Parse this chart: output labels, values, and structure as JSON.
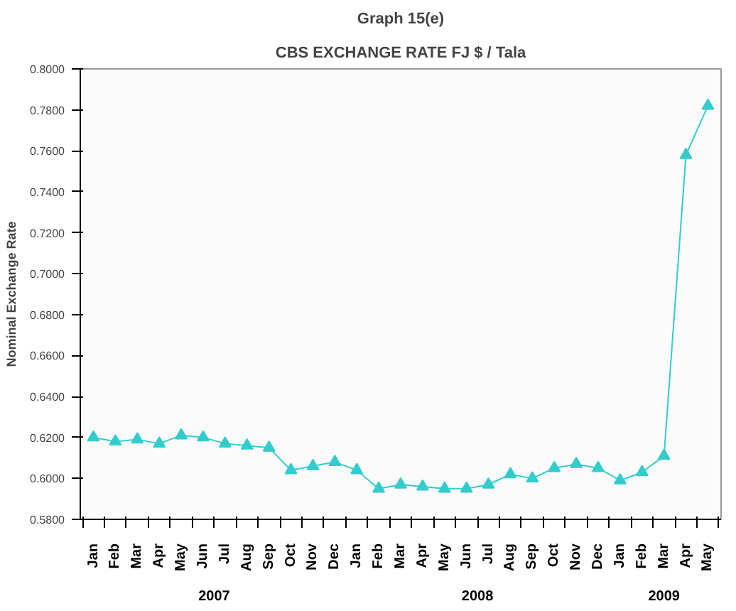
{
  "chart_data": {
    "type": "line",
    "title": "Graph 15(e)",
    "subtitle": "CBS EXCHANGE RATE FJ $ / Tala",
    "ylabel": "Nominal Exchange Rate",
    "categories": [
      [
        "2007",
        "Jan"
      ],
      [
        null,
        "Feb"
      ],
      [
        null,
        "Mar"
      ],
      [
        null,
        "Apr"
      ],
      [
        null,
        "May"
      ],
      [
        null,
        "Jun"
      ],
      [
        null,
        "Jul"
      ],
      [
        null,
        "Aug"
      ],
      [
        null,
        "Sep"
      ],
      [
        null,
        "Oct"
      ],
      [
        null,
        "Nov"
      ],
      [
        null,
        "Dec"
      ],
      [
        "2008",
        "Jan"
      ],
      [
        null,
        "Feb"
      ],
      [
        null,
        "Mar"
      ],
      [
        null,
        "Apr"
      ],
      [
        null,
        "May"
      ],
      [
        null,
        "Jun"
      ],
      [
        null,
        "Jul"
      ],
      [
        null,
        "Aug"
      ],
      [
        null,
        "Sep"
      ],
      [
        null,
        "Oct"
      ],
      [
        null,
        "Nov"
      ],
      [
        null,
        "Dec"
      ],
      [
        "2009",
        "Jan"
      ],
      [
        null,
        "Feb"
      ],
      [
        null,
        "Mar"
      ],
      [
        null,
        "Apr"
      ],
      [
        null,
        "May"
      ]
    ],
    "series": [
      {
        "color": "#33cccc",
        "values": [
          0.62,
          0.618,
          0.619,
          0.617,
          0.621,
          0.62,
          0.617,
          0.616,
          0.615,
          0.604,
          0.606,
          0.608,
          0.604,
          0.595,
          0.597,
          0.596,
          0.595,
          0.595,
          0.597,
          0.602,
          0.6,
          0.605,
          0.607,
          0.605,
          0.599,
          0.603,
          0.611,
          0.758,
          0.782
        ]
      }
    ],
    "ylim": [
      0.58,
      0.8
    ],
    "yticks": [
      {
        "value": 0.58,
        "label": "0.5800"
      },
      {
        "value": 0.6,
        "label": "0.6000"
      },
      {
        "value": 0.62,
        "label": "0.6200"
      },
      {
        "value": 0.64,
        "label": "0.6400"
      },
      {
        "value": 0.66,
        "label": "0.6600"
      },
      {
        "value": 0.68,
        "label": "0.6800"
      },
      {
        "value": 0.7,
        "label": "0.7000"
      },
      {
        "value": 0.72,
        "label": "0.7200"
      },
      {
        "value": 0.74,
        "label": "0.7400"
      },
      {
        "value": 0.76,
        "label": "0.7600"
      },
      {
        "value": 0.78,
        "label": "0.7800"
      },
      {
        "value": 0.8,
        "label": "0.8000"
      }
    ],
    "grid": false,
    "marker": "triangle",
    "line_style": "solid"
  }
}
